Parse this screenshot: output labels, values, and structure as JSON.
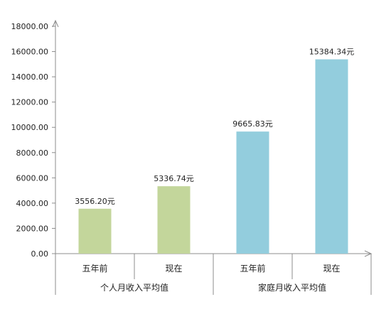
{
  "chart_data": {
    "type": "bar",
    "title": "",
    "xlabel": "",
    "ylabel": "",
    "ylim": [
      0,
      18000
    ],
    "yticks": [
      0,
      2000,
      4000,
      6000,
      8000,
      10000,
      12000,
      14000,
      16000,
      18000
    ],
    "ytick_labels": [
      "0.00",
      "2000.00",
      "4000.00",
      "6000.00",
      "8000.00",
      "10000.00",
      "12000.00",
      "14000.00",
      "16000.00",
      "18000.00"
    ],
    "grid": false,
    "legend": "none",
    "groups": [
      {
        "label": "个人月收入平均值",
        "color": "#c3d69b",
        "bars": [
          {
            "category": "五年前",
            "value": 3556.2,
            "data_label": "3556.20元"
          },
          {
            "category": "现在",
            "value": 5336.74,
            "data_label": "5336.74元"
          }
        ]
      },
      {
        "label": "家庭月收入平均值",
        "color": "#93cddd",
        "bars": [
          {
            "category": "五年前",
            "value": 9665.83,
            "data_label": "9665.83元"
          },
          {
            "category": "现在",
            "value": 15384.34,
            "data_label": "15384.34元"
          }
        ]
      }
    ]
  }
}
